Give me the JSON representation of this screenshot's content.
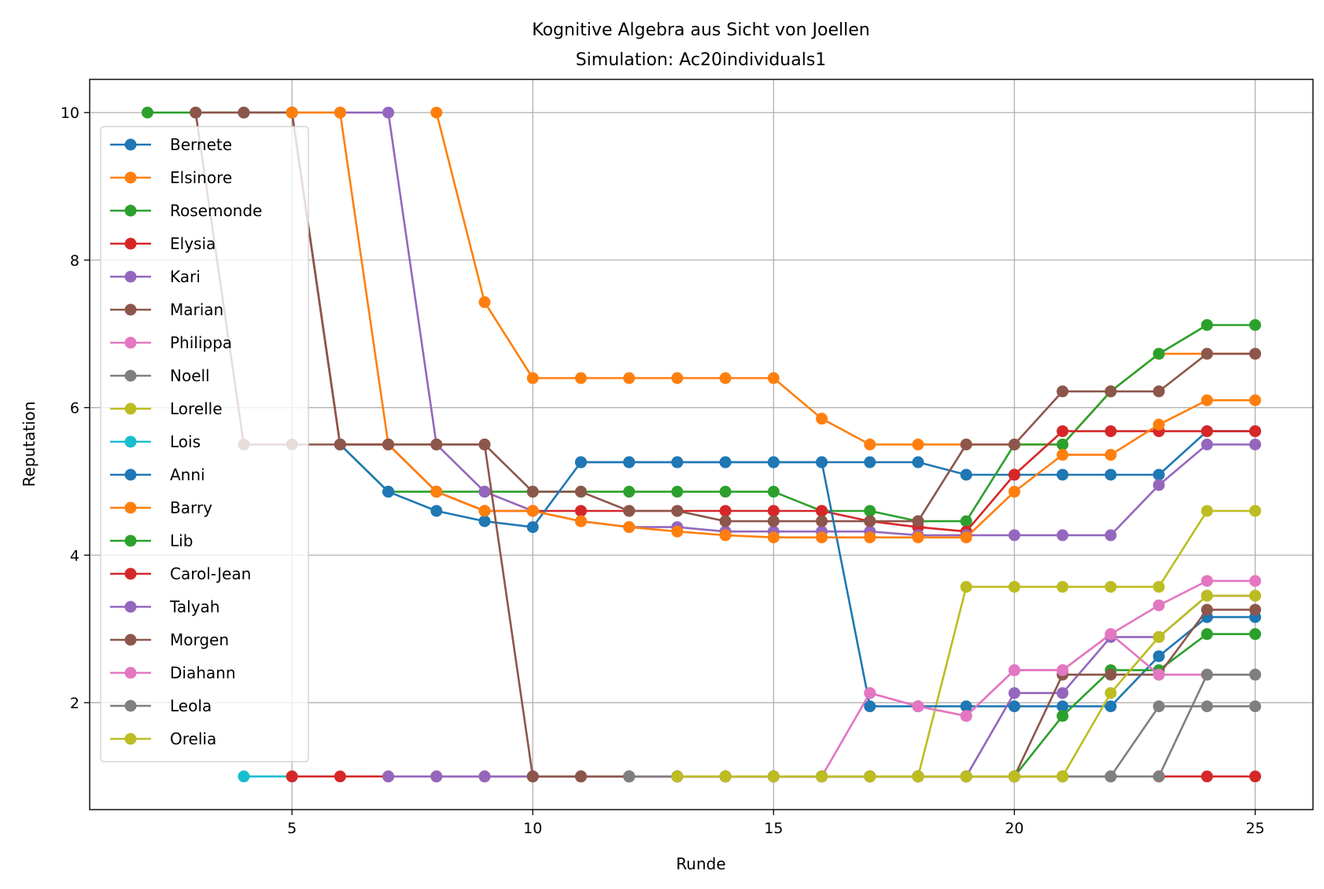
{
  "chart_data": {
    "type": "line",
    "title": "Kognitive Algebra aus Sicht von Joellen",
    "subtitle": "Simulation: Ac20individuals1",
    "xlabel": "Runde",
    "ylabel": "Reputation",
    "xlim": [
      0.8,
      26.2
    ],
    "ylim": [
      0.55,
      10.45
    ],
    "xticks": [
      5,
      10,
      15,
      20,
      25
    ],
    "yticks": [
      2,
      4,
      6,
      8,
      10
    ],
    "grid": true,
    "legend_position": "upper-left",
    "series": [
      {
        "name": "Bernete",
        "color": "#1f77b4",
        "x": [
          11,
          12,
          13,
          14,
          15,
          16,
          17,
          18,
          19,
          20,
          21,
          22,
          23,
          24,
          25
        ],
        "y": [
          5.26,
          5.26,
          5.26,
          5.26,
          5.26,
          5.26,
          5.26,
          5.26,
          5.09,
          5.09,
          5.09,
          5.09,
          5.09,
          5.68,
          5.68
        ]
      },
      {
        "name": "Elsinore",
        "color": "#ff7f0e",
        "x": [
          8,
          9,
          10,
          11,
          12,
          13,
          14,
          15,
          16,
          17,
          18,
          19,
          20,
          21,
          22,
          23,
          24,
          25
        ],
        "y": [
          10,
          7.43,
          6.4,
          6.4,
          6.4,
          6.4,
          6.4,
          6.4,
          5.85,
          5.5,
          5.5,
          5.5,
          5.5,
          5.5,
          6.22,
          6.73,
          6.73,
          6.73
        ]
      },
      {
        "name": "Rosemonde",
        "color": "#2ca02c",
        "x": [
          2,
          3,
          4,
          5,
          6,
          7,
          8,
          9,
          10,
          11,
          12,
          13,
          14,
          15,
          16,
          17,
          18,
          19,
          20,
          21,
          22,
          23,
          24,
          25
        ],
        "y": [
          10,
          10,
          10,
          10,
          5.5,
          4.86,
          4.86,
          4.86,
          4.86,
          4.86,
          4.86,
          4.86,
          4.86,
          4.86,
          4.6,
          4.6,
          4.46,
          4.46,
          5.5,
          5.5,
          6.22,
          6.73,
          7.12,
          7.12
        ]
      },
      {
        "name": "Elysia",
        "color": "#d62728",
        "x": [
          5,
          6,
          7,
          8,
          9,
          10,
          11,
          12,
          13,
          14,
          15,
          16,
          17,
          18,
          19,
          20,
          21,
          22,
          23,
          24,
          25
        ],
        "y": [
          10,
          5.5,
          5.5,
          4.86,
          4.6,
          4.6,
          4.6,
          4.6,
          4.6,
          4.6,
          4.6,
          4.6,
          4.46,
          4.38,
          4.32,
          5.09,
          5.68,
          5.68,
          5.68,
          5.68,
          5.68
        ]
      },
      {
        "name": "Kari",
        "color": "#9467bd",
        "x": [
          4,
          5,
          6,
          7,
          8,
          9,
          10,
          11,
          12,
          13,
          14,
          15,
          16,
          17,
          18,
          19,
          20,
          21,
          22,
          23,
          24,
          25
        ],
        "y": [
          10,
          10,
          10,
          10,
          5.5,
          4.86,
          4.6,
          4.46,
          4.38,
          4.38,
          4.32,
          4.32,
          4.32,
          4.32,
          4.27,
          4.27,
          4.27,
          4.27,
          4.27,
          4.95,
          5.5,
          5.5
        ]
      },
      {
        "name": "Marian",
        "color": "#8c564b",
        "x": [
          3,
          4,
          5,
          6,
          7,
          8,
          9,
          10,
          11,
          12,
          13,
          14,
          15,
          16,
          17,
          18,
          19,
          20,
          21,
          22,
          23,
          24,
          25
        ],
        "y": [
          10,
          10,
          10,
          5.5,
          5.5,
          5.5,
          5.5,
          4.86,
          4.86,
          4.6,
          4.6,
          4.46,
          4.46,
          4.46,
          4.46,
          4.46,
          5.5,
          5.5,
          6.22,
          6.22,
          6.22,
          6.73,
          6.73
        ]
      },
      {
        "name": "Philippa",
        "color": "#e377c2",
        "x": [
          8,
          9,
          10,
          11,
          12,
          13,
          14,
          15,
          16,
          17,
          18,
          19,
          20,
          21,
          22,
          23,
          24,
          25
        ],
        "y": [
          1,
          1,
          1,
          1,
          1,
          1,
          1,
          1,
          1,
          2.13,
          1.95,
          1.82,
          2.44,
          2.44,
          2.93,
          3.32,
          3.65,
          3.65
        ]
      },
      {
        "name": "Noell",
        "color": "#7f7f7f",
        "x": [
          10,
          11,
          12,
          13,
          14,
          15,
          16,
          17,
          18,
          19,
          20,
          21,
          22,
          23,
          24,
          25
        ],
        "y": [
          1,
          1,
          1,
          1,
          1,
          1,
          1,
          1,
          1,
          1,
          1,
          1,
          1,
          1.95,
          1.95,
          1.95
        ]
      },
      {
        "name": "Lorelle",
        "color": "#bcbd22",
        "x": [
          13,
          14,
          15,
          16,
          17,
          18,
          19,
          20,
          21,
          22,
          23,
          24,
          25
        ],
        "y": [
          1,
          1,
          1,
          1,
          1,
          1,
          3.57,
          3.57,
          3.57,
          3.57,
          3.57,
          4.6,
          4.6
        ]
      },
      {
        "name": "Lois",
        "color": "#17becf",
        "x": [
          4,
          5
        ],
        "y": [
          1,
          1
        ]
      },
      {
        "name": "Anni",
        "color": "#1f77b4",
        "x": [
          6,
          7,
          8,
          9,
          10,
          11,
          12,
          13,
          14,
          15,
          16,
          17,
          18,
          19,
          20,
          21,
          22,
          23,
          24,
          25
        ],
        "y": [
          5.5,
          4.86,
          4.6,
          4.46,
          4.38,
          5.26,
          5.26,
          5.26,
          5.26,
          5.26,
          5.26,
          1.95,
          1.95,
          1.95,
          1.95,
          1.95,
          1.95,
          2.63,
          3.16,
          3.16
        ]
      },
      {
        "name": "Barry",
        "color": "#ff7f0e",
        "x": [
          5,
          6,
          7,
          8,
          9,
          10,
          11,
          12,
          13,
          14,
          15,
          16,
          17,
          18,
          19,
          20,
          21,
          22,
          23,
          24,
          25
        ],
        "y": [
          10,
          10,
          5.5,
          4.86,
          4.6,
          4.6,
          4.46,
          4.38,
          4.32,
          4.27,
          4.24,
          4.24,
          4.24,
          4.24,
          4.24,
          4.86,
          5.36,
          5.36,
          5.77,
          6.1,
          6.1
        ]
      },
      {
        "name": "Lib",
        "color": "#2ca02c",
        "x": [
          16,
          17,
          18,
          19,
          20,
          21,
          22,
          23,
          24,
          25
        ],
        "y": [
          1,
          1,
          1,
          1,
          1,
          1.82,
          2.44,
          2.44,
          2.93,
          2.93
        ]
      },
      {
        "name": "Carol-Jean",
        "color": "#d62728",
        "x": [
          5,
          6,
          7,
          8,
          9,
          10,
          11,
          12,
          13,
          14,
          15,
          16,
          17,
          18,
          19,
          20,
          21,
          22,
          23,
          24,
          25
        ],
        "y": [
          1,
          1,
          1,
          1,
          1,
          1,
          1,
          1,
          1,
          1,
          1,
          1,
          1,
          1,
          1,
          1,
          1,
          1,
          1,
          1,
          1
        ]
      },
      {
        "name": "Talyah",
        "color": "#9467bd",
        "x": [
          7,
          8,
          9,
          10,
          11,
          12,
          13,
          14,
          15,
          16,
          17,
          18,
          19,
          20,
          21,
          22,
          23,
          24,
          25
        ],
        "y": [
          1,
          1,
          1,
          1,
          1,
          1,
          1,
          1,
          1,
          1,
          1,
          1,
          1,
          2.13,
          2.13,
          2.89,
          2.89,
          3.45,
          3.45
        ]
      },
      {
        "name": "Morgen",
        "color": "#8c564b",
        "x": [
          3,
          4,
          5,
          6,
          7,
          8,
          9,
          10,
          11,
          12,
          13,
          14,
          15,
          16,
          17,
          18,
          19,
          20,
          21,
          22,
          23,
          24,
          25
        ],
        "y": [
          10,
          5.5,
          5.5,
          5.5,
          5.5,
          5.5,
          5.5,
          1,
          1,
          1,
          1,
          1,
          1,
          1,
          1,
          1,
          1,
          1,
          2.38,
          2.38,
          2.38,
          3.26,
          3.26
        ]
      },
      {
        "name": "Diahann",
        "color": "#e377c2",
        "x": [
          17,
          18,
          19,
          20,
          21,
          22,
          23,
          24,
          25
        ],
        "y": [
          2.13,
          1.95,
          1.82,
          2.44,
          2.44,
          2.93,
          2.38,
          2.38,
          2.38
        ]
      },
      {
        "name": "Leola",
        "color": "#7f7f7f",
        "x": [
          12,
          13,
          14,
          15,
          16,
          17,
          18,
          19,
          20,
          21,
          22,
          23,
          24,
          25
        ],
        "y": [
          1,
          1,
          1,
          1,
          1,
          1,
          1,
          1,
          1,
          1,
          1,
          1,
          2.38,
          2.38
        ]
      },
      {
        "name": "Orelia",
        "color": "#bcbd22",
        "x": [
          13,
          14,
          15,
          16,
          17,
          18,
          19,
          20,
          21,
          22,
          23,
          24,
          25
        ],
        "y": [
          1,
          1,
          1,
          1,
          1,
          1,
          1,
          1,
          1,
          2.13,
          2.89,
          3.45,
          3.45
        ]
      }
    ]
  }
}
